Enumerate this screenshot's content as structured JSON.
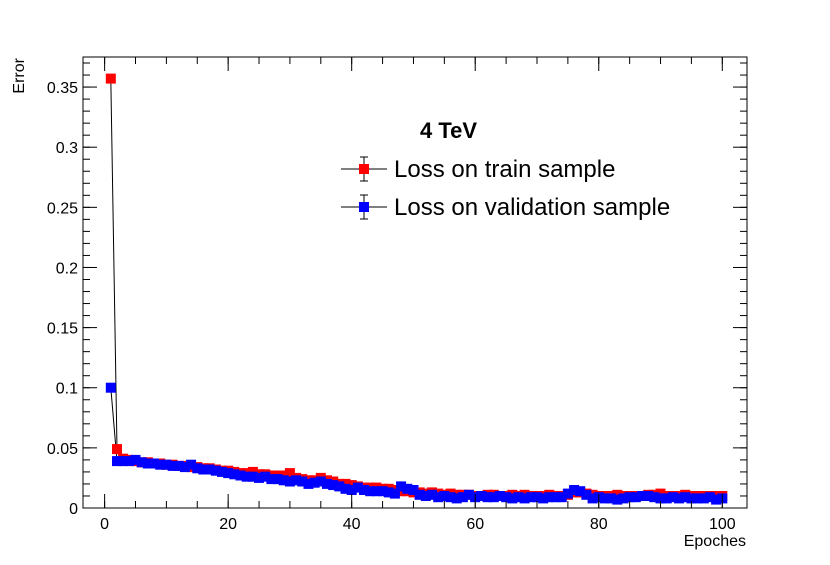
{
  "chart_data": {
    "type": "scatter",
    "title": "4 TeV",
    "xlabel": "Epoches",
    "ylabel": "Error",
    "xlim": [
      -3.5,
      104
    ],
    "ylim": [
      0,
      0.375
    ],
    "x_ticks": [
      0,
      20,
      40,
      60,
      80,
      100
    ],
    "x_tick_labels": [
      "0",
      "20",
      "40",
      "60",
      "80",
      "100"
    ],
    "y_ticks": [
      0,
      0.05,
      0.1,
      0.15,
      0.2,
      0.25,
      0.3,
      0.35
    ],
    "y_tick_labels": [
      "0",
      "0.05",
      "0.1",
      "0.15",
      "0.2",
      "0.25",
      "0.3",
      "0.35"
    ],
    "grid": false,
    "legend_position": "top-right",
    "series": [
      {
        "name": "Loss on train sample",
        "color": "#ff0000",
        "marker": "square",
        "connected": true,
        "x": [
          1,
          2,
          3,
          4,
          5,
          6,
          7,
          8,
          9,
          10,
          11,
          12,
          13,
          14,
          15,
          16,
          17,
          18,
          19,
          20,
          21,
          22,
          23,
          24,
          25,
          26,
          27,
          28,
          29,
          30,
          31,
          32,
          33,
          34,
          35,
          36,
          37,
          38,
          39,
          40,
          41,
          42,
          43,
          44,
          45,
          46,
          47,
          48,
          49,
          50,
          51,
          52,
          53,
          54,
          55,
          56,
          57,
          58,
          59,
          60,
          61,
          62,
          63,
          64,
          65,
          66,
          67,
          68,
          69,
          70,
          71,
          72,
          73,
          74,
          75,
          76,
          77,
          78,
          79,
          80,
          81,
          82,
          83,
          84,
          85,
          86,
          87,
          88,
          89,
          90,
          91,
          92,
          93,
          94,
          95,
          96,
          97,
          98,
          99,
          100
        ],
        "values": [
          0.357,
          0.049,
          0.041,
          0.04,
          0.039,
          0.038,
          0.038,
          0.037,
          0.037,
          0.036,
          0.036,
          0.035,
          0.035,
          0.034,
          0.034,
          0.033,
          0.033,
          0.032,
          0.031,
          0.031,
          0.03,
          0.029,
          0.029,
          0.03,
          0.028,
          0.028,
          0.027,
          0.027,
          0.027,
          0.029,
          0.025,
          0.024,
          0.023,
          0.023,
          0.025,
          0.023,
          0.022,
          0.02,
          0.02,
          0.019,
          0.018,
          0.017,
          0.017,
          0.017,
          0.016,
          0.016,
          0.015,
          0.014,
          0.014,
          0.013,
          0.013,
          0.012,
          0.013,
          0.012,
          0.011,
          0.012,
          0.011,
          0.011,
          0.011,
          0.01,
          0.01,
          0.011,
          0.011,
          0.01,
          0.01,
          0.011,
          0.01,
          0.011,
          0.01,
          0.01,
          0.01,
          0.011,
          0.01,
          0.01,
          0.011,
          0.013,
          0.013,
          0.012,
          0.011,
          0.01,
          0.01,
          0.01,
          0.011,
          0.01,
          0.01,
          0.01,
          0.01,
          0.011,
          0.011,
          0.012,
          0.01,
          0.01,
          0.01,
          0.011,
          0.01,
          0.01,
          0.01,
          0.01,
          0.01,
          0.01
        ]
      },
      {
        "name": "Loss on validation sample",
        "color": "#0000ff",
        "marker": "square",
        "connected": true,
        "x": [
          1,
          2,
          3,
          4,
          5,
          6,
          7,
          8,
          9,
          10,
          11,
          12,
          13,
          14,
          15,
          16,
          17,
          18,
          19,
          20,
          21,
          22,
          23,
          24,
          25,
          26,
          27,
          28,
          29,
          30,
          31,
          32,
          33,
          34,
          35,
          36,
          37,
          38,
          39,
          40,
          41,
          42,
          43,
          44,
          45,
          46,
          47,
          48,
          49,
          50,
          51,
          52,
          53,
          54,
          55,
          56,
          57,
          58,
          59,
          60,
          61,
          62,
          63,
          64,
          65,
          66,
          67,
          68,
          69,
          70,
          71,
          72,
          73,
          74,
          75,
          76,
          77,
          78,
          79,
          80,
          81,
          82,
          83,
          84,
          85,
          86,
          87,
          88,
          89,
          90,
          91,
          92,
          93,
          94,
          95,
          96,
          97,
          98,
          99,
          100
        ],
        "values": [
          0.1,
          0.039,
          0.039,
          0.039,
          0.04,
          0.038,
          0.037,
          0.037,
          0.036,
          0.036,
          0.035,
          0.035,
          0.034,
          0.036,
          0.033,
          0.032,
          0.032,
          0.031,
          0.03,
          0.029,
          0.028,
          0.027,
          0.026,
          0.026,
          0.025,
          0.026,
          0.024,
          0.024,
          0.023,
          0.022,
          0.023,
          0.022,
          0.02,
          0.021,
          0.022,
          0.02,
          0.019,
          0.018,
          0.016,
          0.015,
          0.017,
          0.015,
          0.014,
          0.014,
          0.014,
          0.013,
          0.012,
          0.018,
          0.016,
          0.015,
          0.011,
          0.01,
          0.011,
          0.009,
          0.01,
          0.009,
          0.008,
          0.009,
          0.011,
          0.009,
          0.01,
          0.009,
          0.009,
          0.01,
          0.009,
          0.008,
          0.009,
          0.008,
          0.009,
          0.009,
          0.008,
          0.009,
          0.009,
          0.009,
          0.012,
          0.015,
          0.014,
          0.011,
          0.008,
          0.009,
          0.008,
          0.008,
          0.007,
          0.008,
          0.009,
          0.009,
          0.01,
          0.01,
          0.009,
          0.008,
          0.008,
          0.009,
          0.008,
          0.009,
          0.008,
          0.008,
          0.008,
          0.009,
          0.007,
          0.008
        ]
      }
    ]
  }
}
